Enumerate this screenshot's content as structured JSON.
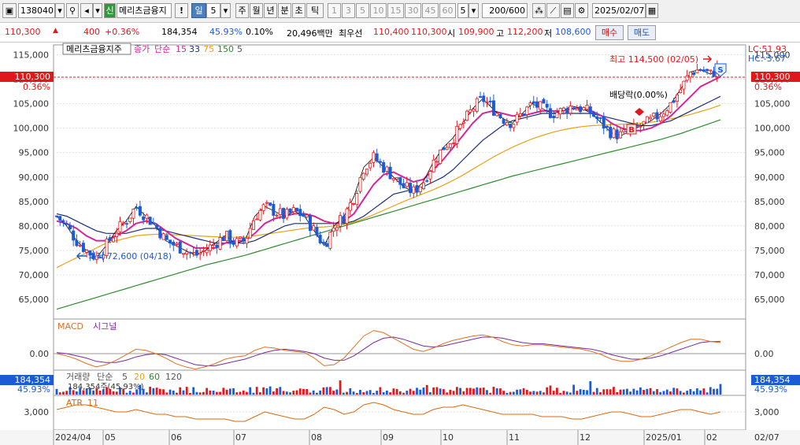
{
  "toolbar": {
    "code": "138040",
    "credit_badge": "신",
    "stock_name": "메리츠금융지",
    "alert_label": "!",
    "period_label": "일",
    "period_value": "5",
    "period_buttons": [
      "주",
      "월",
      "년",
      "분",
      "초",
      "틱"
    ],
    "number_buttons": [
      "1",
      "3",
      "5",
      "10",
      "15",
      "30",
      "45",
      "60"
    ],
    "count_value": "5",
    "bars_display": "200/600",
    "date": "2025/02/07"
  },
  "quote": {
    "price": "110,300",
    "change": "400",
    "change_pct": "+0.36%",
    "volume": "184,354",
    "volume_ratio": "45.93%",
    "turnover_ratio": "0.10%",
    "amount": "20,496백만",
    "best_ask_label": "최우선",
    "best_ask": "110,400",
    "best_bid": "110,300",
    "open_label": "시",
    "open": "109,900",
    "high_label": "고",
    "high": "112,200",
    "low_label": "저",
    "low": "108,600",
    "buy_label": "매수",
    "sell_label": "매도"
  },
  "colors": {
    "up": "#e0181b",
    "down": "#1d5bd6",
    "ma5": "#000000",
    "ma15": "#d4259a",
    "ma33": "#1b2d7a",
    "ma75": "#e8a317",
    "ma150": "#2e8b2e",
    "macd": "#e07020",
    "signal": "#7a2a9a",
    "atr": "#d86a10",
    "volume_up": "#e0181b",
    "volume_down": "#1d5bd6"
  },
  "price_panel": {
    "legend_stock": "메리츠금융지주",
    "legend_close": "종가",
    "legend_simple": "단순",
    "ma_periods": [
      "15",
      "33",
      "75",
      "150",
      "5"
    ],
    "current_tag": "110,300",
    "current_pct": "0.36%",
    "right_tag": "110,300",
    "right_pct": "0.36%",
    "lc_label": "LC:51.93",
    "hc_label": "HC:-3.67",
    "high_annotation": "최고 114,500 (02/05)",
    "low_annotation": "최저 72,600 (04/18)",
    "dividend_annotation": "배당락(0.00%)",
    "sell_marker": "S",
    "buy_marker": "B"
  },
  "macd_panel": {
    "macd_label": "MACD",
    "signal_label": "시그널",
    "zero_left": "0.00",
    "zero_right": "0.00"
  },
  "volume_panel": {
    "label": "거래량",
    "simple": "단순",
    "periods": [
      "5",
      "20",
      "60",
      "120"
    ],
    "left_value": "184,354",
    "left_pct": "45.93%",
    "right_value": "184,354",
    "right_pct": "45.93%",
    "inner_text": "184,354주(45.93%)"
  },
  "atr_panel": {
    "label": "ATR",
    "period": "11",
    "left_tick": "3,000",
    "right_tick": "3,000"
  },
  "chart_data": {
    "type": "line",
    "title": "메리츠금융지주",
    "xlabel": "",
    "ylabel": "",
    "ylim": [
      61000,
      117000
    ],
    "y_ticks": [
      65000,
      70000,
      75000,
      80000,
      85000,
      90000,
      95000,
      100000,
      105000,
      110000,
      115000
    ],
    "y_tick_labels": [
      "65,000",
      "70,000",
      "75,000",
      "80,000",
      "85,000",
      "90,000",
      "95,000",
      "100,000",
      "105,000",
      "110,000",
      "115,000"
    ],
    "x_month_labels": [
      "2024/04",
      "05",
      "06",
      "07",
      "08",
      "09",
      "10",
      "11",
      "12",
      "2025/01",
      "02",
      "02/07"
    ],
    "grid": true,
    "series": [
      {
        "name": "5",
        "values": [
          82000,
          80000,
          77000,
          75000,
          73500,
          76000,
          79000,
          81000,
          84000,
          82000,
          80000,
          77000,
          76000,
          75000,
          74000,
          75000,
          76500,
          78000,
          76500,
          77000,
          82000,
          84000,
          83000,
          82000,
          83000,
          82000,
          79000,
          76000,
          80000,
          82000,
          86000,
          92000,
          94000,
          92000,
          90000,
          88000,
          87000,
          89000,
          93000,
          96000,
          98000,
          101000,
          104000,
          106000,
          104000,
          102000,
          101000,
          103000,
          105000,
          104000,
          103000,
          103500,
          104500,
          104000,
          103000,
          101000,
          99000,
          98500,
          99500,
          100500,
          101500,
          103000,
          105000,
          108000,
          111500,
          112000,
          111000,
          112500
        ]
      },
      {
        "name": "15",
        "values": [
          81000,
          80500,
          79500,
          78000,
          77000,
          77000,
          78000,
          79000,
          80500,
          81000,
          80500,
          79000,
          77500,
          76500,
          75500,
          75500,
          75500,
          76500,
          77000,
          77000,
          78500,
          80500,
          81500,
          82000,
          82500,
          82500,
          82000,
          81000,
          80500,
          81000,
          82500,
          85500,
          88500,
          90500,
          91000,
          90000,
          89000,
          89500,
          91500,
          93500,
          96000,
          98500,
          101000,
          103000,
          103500,
          103000,
          102500,
          102500,
          103000,
          103500,
          103500,
          103500,
          104000,
          104000,
          103500,
          102500,
          101000,
          100000,
          99500,
          99500,
          100000,
          101000,
          102500,
          104500,
          106500,
          108500,
          109500,
          110500
        ]
      },
      {
        "name": "33",
        "values": [
          82500,
          82000,
          81000,
          80000,
          79000,
          78500,
          78500,
          78500,
          79000,
          79500,
          79500,
          79000,
          78500,
          78000,
          77500,
          77000,
          76500,
          76500,
          76500,
          76500,
          77000,
          78000,
          79000,
          80000,
          80500,
          80500,
          80500,
          80500,
          80500,
          80500,
          81000,
          82000,
          83500,
          85000,
          86500,
          87000,
          87500,
          88000,
          89000,
          90000,
          91500,
          93500,
          95500,
          97500,
          99000,
          100500,
          101500,
          102000,
          102500,
          103000,
          103000,
          103000,
          103000,
          103000,
          103000,
          102500,
          102000,
          101500,
          101000,
          100500,
          100500,
          101000,
          101500,
          102500,
          103500,
          104500,
          105500,
          106500
        ]
      },
      {
        "name": "75",
        "values": [
          71500,
          72500,
          73500,
          74500,
          75500,
          76500,
          77000,
          77500,
          78000,
          78200,
          78300,
          78300,
          78200,
          78100,
          78000,
          77900,
          77800,
          77700,
          77700,
          77700,
          78000,
          78300,
          78600,
          78900,
          79200,
          79500,
          79700,
          79800,
          80000,
          80300,
          80800,
          81500,
          82300,
          83200,
          84100,
          85000,
          85800,
          86600,
          87400,
          88300,
          89300,
          90400,
          91600,
          92800,
          94000,
          95100,
          96100,
          97000,
          97800,
          98500,
          99100,
          99600,
          100000,
          100300,
          100500,
          100600,
          100700,
          100800,
          100900,
          101000,
          101200,
          101500,
          101900,
          102300,
          102800,
          103400,
          104000,
          104700
        ]
      },
      {
        "name": "150",
        "values": [
          63000,
          63600,
          64200,
          64800,
          65400,
          66000,
          66600,
          67200,
          67800,
          68400,
          69000,
          69600,
          70200,
          70800,
          71400,
          72000,
          72500,
          73000,
          73500,
          74000,
          74600,
          75200,
          75800,
          76400,
          77000,
          77600,
          78200,
          78800,
          79400,
          80000,
          80600,
          81200,
          81800,
          82400,
          83000,
          83600,
          84200,
          84800,
          85400,
          86000,
          86600,
          87200,
          87800,
          88400,
          89000,
          89600,
          90200,
          90700,
          91200,
          91700,
          92200,
          92700,
          93200,
          93700,
          94200,
          94700,
          95200,
          95700,
          96200,
          96700,
          97200,
          97700,
          98300,
          98900,
          99600,
          100300,
          101000,
          101700
        ]
      }
    ],
    "macd": [
      0.0,
      -0.2,
      -0.5,
      -0.9,
      -1.2,
      -1.0,
      -0.6,
      -0.1,
      0.4,
      0.3,
      0.0,
      -0.4,
      -0.9,
      -1.2,
      -1.4,
      -1.2,
      -0.9,
      -0.5,
      -0.3,
      -0.2,
      0.3,
      0.6,
      0.5,
      0.3,
      0.2,
      0.1,
      -0.4,
      -1.1,
      -1.0,
      -0.4,
      0.6,
      1.6,
      2.1,
      1.9,
      1.4,
      0.9,
      0.4,
      0.2,
      0.5,
      0.9,
      1.2,
      1.4,
      1.6,
      1.7,
      1.5,
      1.1,
      0.8,
      0.7,
      0.8,
      0.8,
      0.7,
      0.6,
      0.5,
      0.4,
      0.2,
      -0.1,
      -0.5,
      -0.7,
      -0.7,
      -0.5,
      -0.2,
      0.2,
      0.6,
      1.0,
      1.3,
      1.3,
      1.1,
      1.0
    ],
    "signal": [
      0.1,
      0.0,
      -0.2,
      -0.4,
      -0.7,
      -0.8,
      -0.8,
      -0.6,
      -0.3,
      -0.1,
      0.0,
      -0.1,
      -0.4,
      -0.7,
      -1.0,
      -1.1,
      -1.1,
      -0.9,
      -0.7,
      -0.5,
      -0.2,
      0.1,
      0.3,
      0.4,
      0.3,
      0.2,
      0.0,
      -0.4,
      -0.6,
      -0.6,
      -0.2,
      0.4,
      1.0,
      1.4,
      1.5,
      1.3,
      1.0,
      0.7,
      0.6,
      0.7,
      0.9,
      1.1,
      1.3,
      1.5,
      1.5,
      1.4,
      1.2,
      1.0,
      0.9,
      0.9,
      0.8,
      0.7,
      0.6,
      0.5,
      0.4,
      0.2,
      -0.1,
      -0.3,
      -0.5,
      -0.5,
      -0.4,
      -0.2,
      0.1,
      0.4,
      0.7,
      1.0,
      1.1,
      1.1
    ],
    "atr": [
      3100,
      3200,
      3300,
      3300,
      3200,
      3100,
      3000,
      3000,
      3100,
      3000,
      2900,
      2900,
      2800,
      2800,
      2700,
      2700,
      2700,
      2700,
      2600,
      2600,
      2800,
      3000,
      2900,
      2800,
      2700,
      2700,
      2900,
      3200,
      3100,
      2900,
      3000,
      3300,
      3400,
      3300,
      3100,
      3000,
      2900,
      2900,
      3100,
      3200,
      3200,
      3300,
      3200,
      3100,
      3000,
      2900,
      2900,
      2900,
      2900,
      2800,
      2800,
      2800,
      2700,
      2700,
      2800,
      2900,
      3000,
      3000,
      2900,
      2800,
      2800,
      2900,
      3000,
      3100,
      3100,
      3000,
      2900,
      3000
    ]
  }
}
